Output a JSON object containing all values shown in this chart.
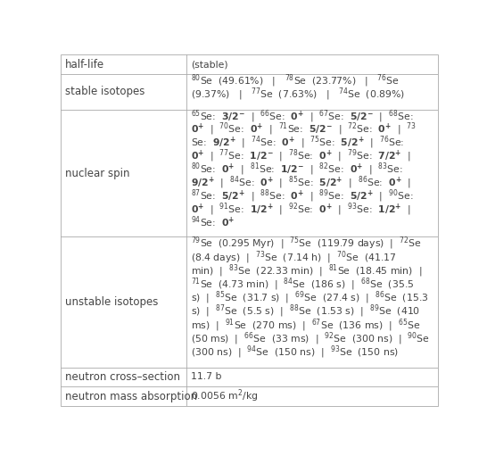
{
  "col_split": 0.333,
  "bg_color": "#ffffff",
  "border_color": "#aaaaaa",
  "label_color": "#444444",
  "content_color": "#444444",
  "label_fontsize": 8.5,
  "content_fontsize": 7.8,
  "spin_fontsize": 9.5,
  "rows": [
    {
      "label": "half-life",
      "lines": [
        "(stable)"
      ]
    },
    {
      "label": "stable isotopes",
      "lines": [
        "$^{80}$Se  (49.61%)   |   $^{78}$Se  (23.77%)   |   $^{76}$Se",
        "(9.37%)   |   $^{77}$Se  (7.63%)   |   $^{74}$Se  (0.89%)"
      ]
    },
    {
      "label": "nuclear spin",
      "lines": [
        "$^{65}$Se:  $\\mathbf{3/2^{-}}$  |  $^{66}$Se:  $\\mathbf{0^{+}}$  |  $^{67}$Se:  $\\mathbf{5/2^{-}}$  |  $^{68}$Se:",
        "$\\mathbf{0^{+}}$  |  $^{70}$Se:  $\\mathbf{0^{+}}$  |  $^{71}$Se:  $\\mathbf{5/2^{-}}$  |  $^{72}$Se:  $\\mathbf{0^{+}}$  |  $^{73}$",
        "Se:  $\\mathbf{9/2^{+}}$  |  $^{74}$Se:  $\\mathbf{0^{+}}$  |  $^{75}$Se:  $\\mathbf{5/2^{+}}$  |  $^{76}$Se:",
        "$\\mathbf{0^{+}}$  |  $^{77}$Se:  $\\mathbf{1/2^{-}}$  |  $^{78}$Se:  $\\mathbf{0^{+}}$  |  $^{79}$Se:  $\\mathbf{7/2^{+}}$  |",
        "$^{80}$Se:  $\\mathbf{0^{+}}$  |  $^{81}$Se:  $\\mathbf{1/2^{-}}$  |  $^{82}$Se:  $\\mathbf{0^{+}}$  |  $^{83}$Se:",
        "$\\mathbf{9/2^{+}}$  |  $^{84}$Se:  $\\mathbf{0^{+}}$  |  $^{85}$Se:  $\\mathbf{5/2^{+}}$  |  $^{86}$Se:  $\\mathbf{0^{+}}$  |",
        "$^{87}$Se:  $\\mathbf{5/2^{+}}$  |  $^{88}$Se:  $\\mathbf{0^{+}}$  |  $^{89}$Se:  $\\mathbf{5/2^{+}}$  |  $^{90}$Se:",
        "$\\mathbf{0^{+}}$  |  $^{91}$Se:  $\\mathbf{1/2^{+}}$  |  $^{92}$Se:  $\\mathbf{0^{+}}$  |  $^{93}$Se:  $\\mathbf{1/2^{+}}$  |",
        "$^{94}$Se:  $\\mathbf{0^{+}}$"
      ]
    },
    {
      "label": "unstable isotopes",
      "lines": [
        "$^{79}$Se  (0.295 Myr)  |  $^{75}$Se  (119.79 days)  |  $^{72}$Se",
        "(8.4 days)  |  $^{73}$Se  (7.14 h)  |  $^{70}$Se  (41.17",
        "min)  |  $^{83}$Se  (22.33 min)  |  $^{81}$Se  (18.45 min)  |",
        "$^{71}$Se  (4.73 min)  |  $^{84}$Se  (186 s)  |  $^{68}$Se  (35.5",
        "s)  |  $^{85}$Se  (31.7 s)  |  $^{69}$Se  (27.4 s)  |  $^{86}$Se  (15.3",
        "s)  |  $^{87}$Se  (5.5 s)  |  $^{88}$Se  (1.53 s)  |  $^{89}$Se  (410",
        "ms)  |  $^{91}$Se  (270 ms)  |  $^{67}$Se  (136 ms)  |  $^{65}$Se",
        "(50 ms)  |  $^{66}$Se  (33 ms)  |  $^{92}$Se  (300 ns)  |  $^{90}$Se",
        "(300 ns)  |  $^{94}$Se  (150 ns)  |  $^{93}$Se  (150 ns)"
      ]
    },
    {
      "label": "neutron cross–section",
      "lines": [
        "11.7 b"
      ]
    },
    {
      "label": "neutron mass absorption",
      "lines": [
        "0.0056 m$^{2}$/kg"
      ]
    }
  ]
}
